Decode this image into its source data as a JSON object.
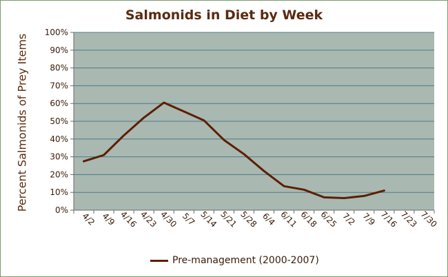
{
  "chart_data": {
    "type": "line",
    "title": "Salmonids in Diet by Week",
    "xlabel": "",
    "ylabel": "Percent Salmonids of Prey Items",
    "categories": [
      "4/2",
      "4/9",
      "4/16",
      "4/23",
      "4/30",
      "5/7",
      "5/14",
      "5/21",
      "5/28",
      "6/4",
      "6/11",
      "6/18",
      "6/25",
      "7/2",
      "7/9",
      "7/16",
      "7/23",
      "7/30"
    ],
    "ylim": [
      0,
      100
    ],
    "yticks": [
      "0%",
      "10%",
      "20%",
      "30%",
      "40%",
      "50%",
      "60%",
      "70%",
      "80%",
      "90%",
      "100%"
    ],
    "grid": true,
    "legend_position": "bottom",
    "series": [
      {
        "name": "Pre-management (2000-2007)",
        "color": "#5c1e00",
        "values": [
          27.5,
          31,
          42,
          52,
          60.5,
          55.5,
          50.5,
          39.5,
          31.5,
          22,
          13.5,
          11.5,
          7.2,
          6.8,
          8,
          11,
          null,
          null
        ]
      }
    ],
    "plot_background": "#a9b8b0",
    "gridline_color": "#4a7a8a",
    "text_color": "#5a2a10"
  }
}
